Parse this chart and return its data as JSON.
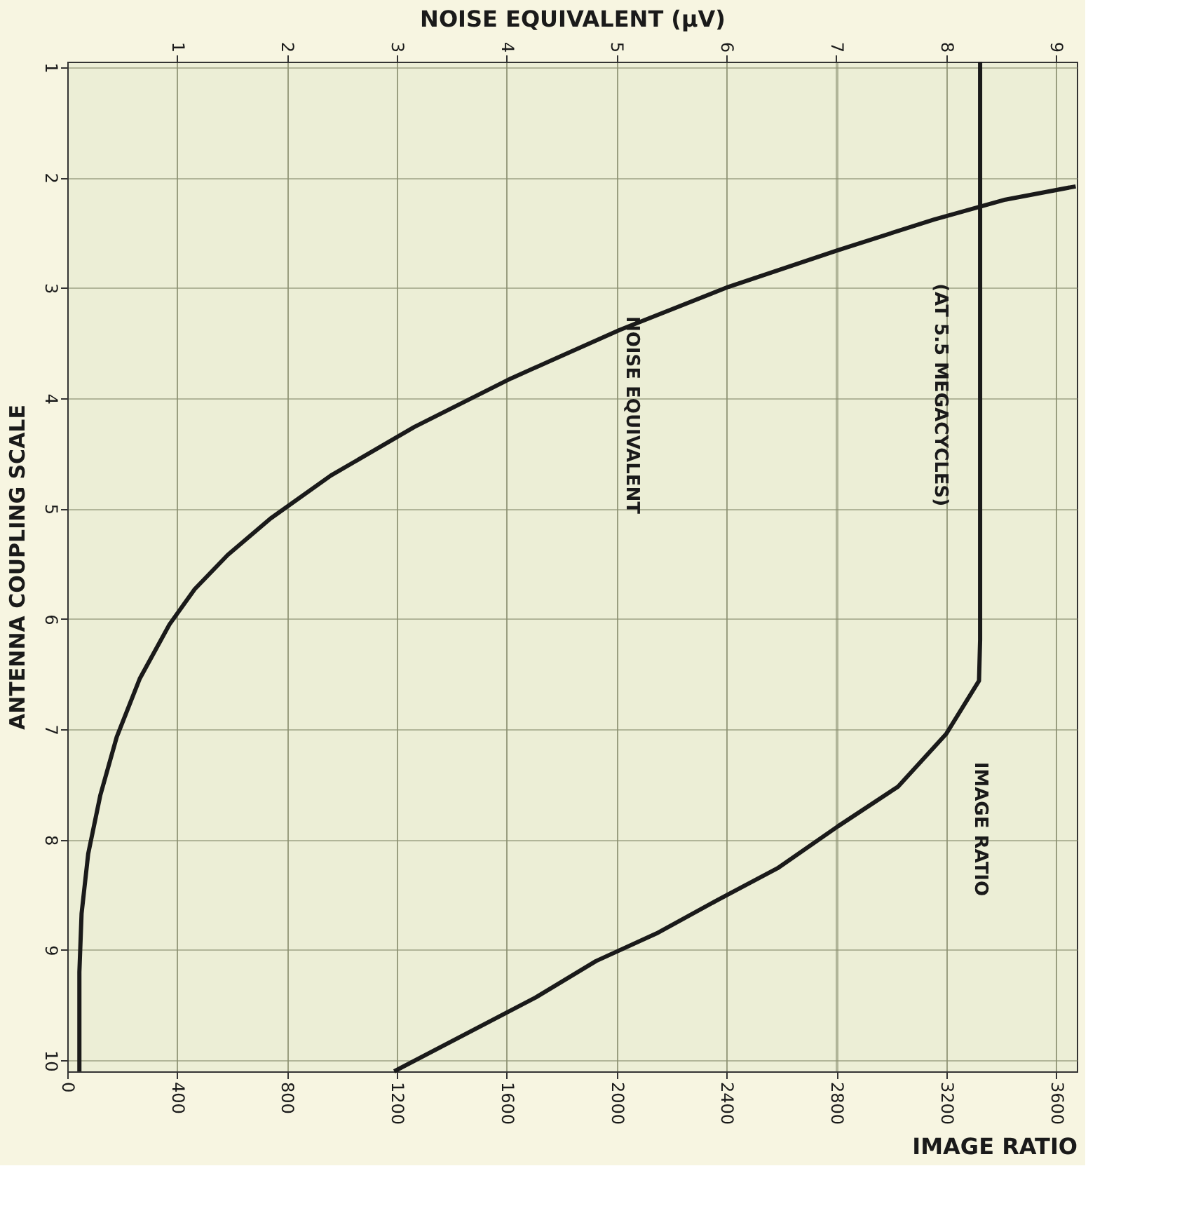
{
  "chart_data": {
    "type": "line",
    "xlabel": "IMAGE RATIO",
    "x2label": "NOISE EQUIVALENT (μV)",
    "ylabel": "ANTENNA COUPLING SCALE",
    "xlim": [
      0,
      3675
    ],
    "xticks": [
      0,
      400,
      800,
      1200,
      1600,
      2000,
      2400,
      2800,
      3200,
      3600
    ],
    "x2lim": [
      0,
      9.19
    ],
    "x2ticks": [
      1,
      2,
      3,
      4,
      5,
      6,
      7,
      8,
      9
    ],
    "ylim": [
      10.1,
      0.95
    ],
    "yticks": [
      1,
      2,
      3,
      4,
      5,
      6,
      7,
      8,
      9,
      10
    ],
    "grid": true,
    "marker": "none",
    "line_style": "solid",
    "annotations": [
      "(AT 5.5 MEGACYCLES)"
    ],
    "series": [
      {
        "name": "NOISE EQUIVALENT",
        "color": "#1a1a1a",
        "axis": "x2",
        "x": [
          0.11,
          0.11,
          0.13,
          0.19,
          0.3,
          0.45,
          0.66,
          0.93,
          1.16,
          1.46,
          1.85,
          2.4,
          3.16,
          4.04,
          5.03,
          6.02,
          7.01,
          7.89,
          8.54,
          9.18
        ],
        "values": [
          10.1,
          9.2,
          8.67,
          8.13,
          7.6,
          7.07,
          6.54,
          6.05,
          5.73,
          5.42,
          5.09,
          4.7,
          4.26,
          3.82,
          3.38,
          2.99,
          2.66,
          2.38,
          2.2,
          2.08
        ]
      },
      {
        "name": "IMAGE RATIO",
        "color": "#1a1a1a",
        "x": [
          1190,
          1705,
          1925,
          2145,
          2365,
          2585,
          2805,
          3024,
          3200,
          3319,
          3323,
          3323
        ],
        "values": [
          10.1,
          9.43,
          9.1,
          8.85,
          8.55,
          8.26,
          7.88,
          7.52,
          7.04,
          6.56,
          6.19,
          0.95
        ]
      }
    ]
  }
}
